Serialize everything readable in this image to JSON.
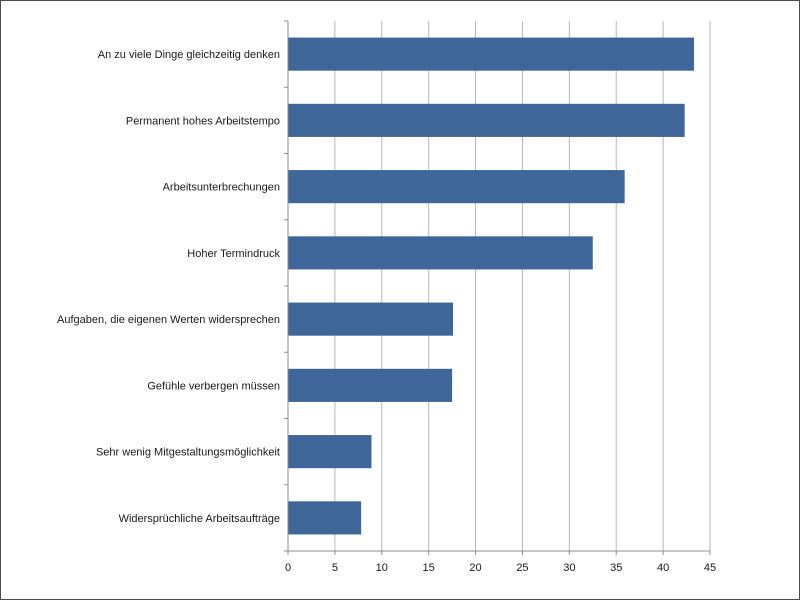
{
  "chart_data": {
    "type": "bar",
    "orientation": "horizontal",
    "categories": [
      "An zu viele Dinge gleichzeitig denken",
      "Permanent hohes Arbeitstempo",
      "Arbeitsunterbrechungen",
      "Hoher Termindruck",
      "Aufgaben, die eigenen Werten widersprechen",
      "Gefühle verbergen müssen",
      "Sehr wenig Mitgestaltungsmöglichkeit",
      "Widersprüchliche Arbeitsaufträge"
    ],
    "values": [
      43.3,
      42.3,
      35.9,
      32.5,
      17.6,
      17.5,
      8.9,
      7.8
    ],
    "xlim": [
      0,
      45
    ],
    "xticks": [
      "0",
      "5",
      "10",
      "15",
      "20",
      "25",
      "30",
      "35",
      "40",
      "45"
    ],
    "grid": true,
    "bar_color": "#3f6698",
    "grid_color": "#b7b7b7",
    "axis_color": "#8c8c8c"
  }
}
